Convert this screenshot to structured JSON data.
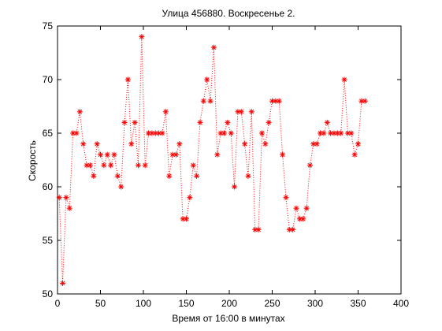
{
  "chart_data": {
    "type": "line",
    "title": "Улица 456880. Воскресенье 2.",
    "xlabel": "Время от 16:00 в минутах",
    "ylabel": "Скорость",
    "xlim": [
      0,
      400
    ],
    "ylim": [
      50,
      75
    ],
    "xticks": [
      0,
      50,
      100,
      150,
      200,
      250,
      300,
      350,
      400
    ],
    "yticks": [
      50,
      55,
      60,
      65,
      70,
      75
    ],
    "grid": false,
    "series": [
      {
        "line_style": "dotted",
        "marker": "asterisk",
        "color": "#ff0000",
        "x": [
          2,
          6,
          10,
          14,
          18,
          22,
          26,
          30,
          34,
          38,
          42,
          46,
          50,
          54,
          58,
          62,
          66,
          70,
          74,
          78,
          82,
          86,
          90,
          94,
          98,
          102,
          106,
          110,
          114,
          118,
          122,
          126,
          130,
          134,
          138,
          142,
          146,
          150,
          154,
          158,
          162,
          166,
          170,
          174,
          178,
          182,
          186,
          190,
          194,
          198,
          202,
          206,
          210,
          214,
          218,
          222,
          226,
          230,
          234,
          238,
          242,
          246,
          250,
          254,
          258,
          262,
          266,
          270,
          274,
          278,
          282,
          286,
          290,
          294,
          298,
          302,
          306,
          310,
          314,
          318,
          322,
          326,
          330,
          334,
          338,
          342,
          346,
          350,
          354,
          358
        ],
        "y": [
          59,
          51,
          59,
          58,
          65,
          65,
          67,
          64,
          62,
          62,
          61,
          64,
          63,
          62,
          63,
          62,
          63,
          61,
          60,
          66,
          70,
          64,
          66,
          62,
          74,
          62,
          65,
          65,
          65,
          65,
          65,
          67,
          61,
          63,
          63,
          64,
          57,
          57,
          59,
          62,
          61,
          66,
          68,
          70,
          68,
          73,
          63,
          65,
          65,
          66,
          65,
          60,
          67,
          67,
          64,
          61,
          67,
          56,
          56,
          65,
          64,
          66,
          68,
          68,
          68,
          63,
          59,
          56,
          56,
          58,
          57,
          57,
          58,
          62,
          64,
          64,
          65,
          65,
          66,
          65,
          65,
          65,
          65,
          70,
          65,
          65,
          63,
          64,
          68,
          68
        ]
      }
    ]
  }
}
